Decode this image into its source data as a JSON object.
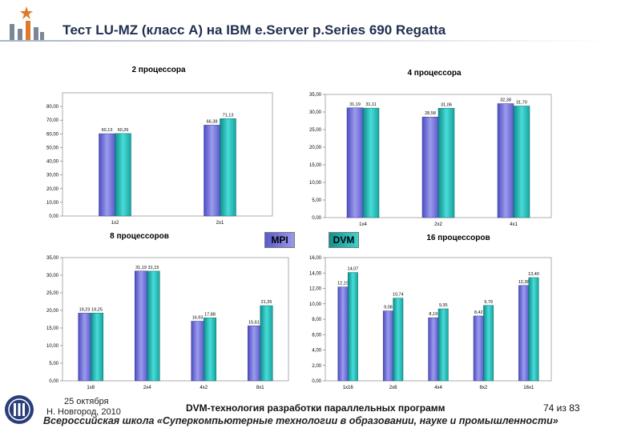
{
  "slide": {
    "title": "Тест LU-MZ (класс A) на IBM e.Server p.Series 690 Regatta",
    "footer": {
      "date": "25 октября",
      "city": "Н. Новгород, 2010",
      "course": "DVM-технология разработки параллельных программ",
      "page": "74 из 83",
      "school": "Всероссийская школа «Суперкомпьютерные технологии в образовании, науке и промышленности»"
    }
  },
  "legend": {
    "mpi": "MPI",
    "dvm": "DVM"
  },
  "colors": {
    "mpi": "#6a6ad8",
    "dvm": "#26b4b0"
  },
  "chart_data": [
    {
      "type": "bar",
      "title": "2 процессора",
      "categories": [
        "1x2",
        "2x1"
      ],
      "series": [
        {
          "name": "MPI",
          "values": [
            60.13,
            66.38
          ],
          "labels": [
            "60,13",
            "66,38"
          ]
        },
        {
          "name": "DVM",
          "values": [
            60.26,
            71.13
          ],
          "labels": [
            "60,26",
            "71,13"
          ]
        }
      ],
      "ylim": [
        0,
        90
      ],
      "yticks": [
        "0,00",
        "10,00",
        "20,00",
        "30,00",
        "40,00",
        "50,00",
        "60,00",
        "70,00",
        "80,00"
      ],
      "ystep": 10
    },
    {
      "type": "bar",
      "title": "4 процессора",
      "categories": [
        "1x4",
        "2x2",
        "4x1"
      ],
      "series": [
        {
          "name": "MPI",
          "values": [
            31.19,
            28.58,
            32.38
          ],
          "labels": [
            "31,19",
            "28,58",
            "32,38"
          ]
        },
        {
          "name": "DVM",
          "values": [
            31.11,
            31.06,
            31.7
          ],
          "labels": [
            "31,11",
            "31,06",
            "31,70"
          ]
        }
      ],
      "ylim": [
        0,
        35
      ],
      "yticks": [
        "0,00",
        "5,00",
        "10,00",
        "15,00",
        "20,00",
        "25,00",
        "30,00",
        "35,00"
      ],
      "ystep": 5
    },
    {
      "type": "bar",
      "title": "8 процессоров",
      "categories": [
        "1x8",
        "2x4",
        "4x2",
        "8x1"
      ],
      "series": [
        {
          "name": "MPI",
          "values": [
            19.23,
            31.19,
            16.93,
            15.61
          ],
          "labels": [
            "19,23",
            "31,19",
            "16,93",
            "15,61"
          ]
        },
        {
          "name": "DVM",
          "values": [
            19.25,
            31.15,
            17.88,
            21.35
          ],
          "labels": [
            "19,25",
            "31,15",
            "17,88",
            "21,35"
          ]
        }
      ],
      "ylim": [
        0,
        35
      ],
      "yticks": [
        "0,00",
        "5,00",
        "10,00",
        "15,00",
        "20,00",
        "25,00",
        "30,00",
        "35,00"
      ],
      "ystep": 5
    },
    {
      "type": "bar",
      "title": "16 процессоров",
      "categories": [
        "1x16",
        "2x8",
        "4x4",
        "8x2",
        "16x1"
      ],
      "series": [
        {
          "name": "MPI",
          "values": [
            12.19,
            9.08,
            8.19,
            8.42,
            12.38
          ],
          "labels": [
            "12,19",
            "9,08",
            "8,19",
            "8,42",
            "12,38"
          ]
        },
        {
          "name": "DVM",
          "values": [
            14.07,
            10.74,
            9.35,
            9.79,
            13.4
          ],
          "labels": [
            "14,07",
            "10,74",
            "9,35",
            "9,79",
            "13,40"
          ]
        }
      ],
      "ylim": [
        0,
        16
      ],
      "yticks": [
        "0,00",
        "2,00",
        "4,00",
        "6,00",
        "8,00",
        "10,00",
        "12,00",
        "14,00",
        "16,00"
      ],
      "ystep": 2
    }
  ]
}
